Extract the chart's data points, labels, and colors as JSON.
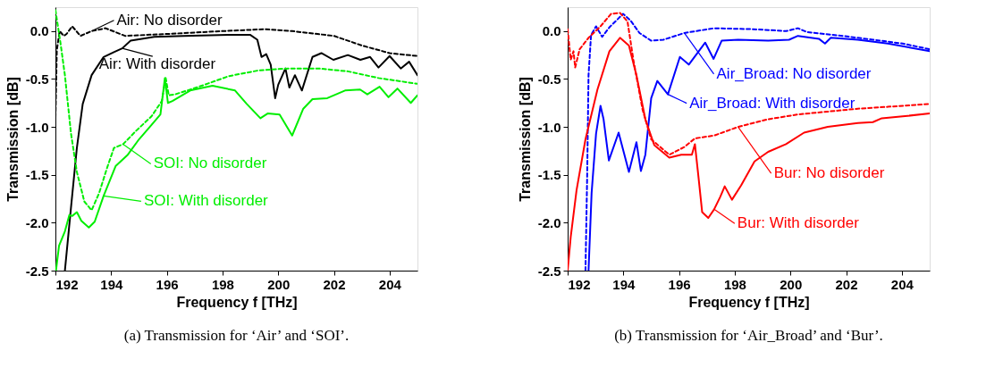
{
  "chart_data": [
    {
      "type": "line",
      "title": "(a)  Transmission for ‘Air’ and ‘SOI’.",
      "xlabel": "Frequency f [THz]",
      "ylabel": "Transmission [dB]",
      "xlim": [
        192,
        205
      ],
      "xticks": [
        192,
        194,
        196,
        198,
        200,
        202,
        204
      ],
      "ylim": [
        -2.5,
        0.25
      ],
      "yticks": [
        {
          "value": -2.5,
          "label": "-2.5"
        },
        {
          "value": -2,
          "label": "-2.0"
        },
        {
          "value": -1.5,
          "label": "-1.5"
        },
        {
          "value": -1,
          "label": "-1.0"
        },
        {
          "value": -0.5,
          "label": "-0.5"
        },
        {
          "value": 0,
          "label": "0.0"
        }
      ],
      "grid": false,
      "series": [
        {
          "color": "#000000",
          "line_style": "dashed",
          "x": [
            192.0,
            192.05,
            192.15,
            192.3,
            192.4,
            192.6,
            192.9,
            193.3,
            193.8,
            194.5,
            196.0,
            198.0,
            199.5,
            200.5,
            202.0,
            203.0,
            204.0,
            205.0
          ],
          "values": [
            -0.9,
            -0.2,
            0.0,
            -0.05,
            -0.03,
            0.05,
            -0.05,
            0.0,
            0.03,
            -0.05,
            -0.03,
            0.0,
            0.02,
            0.0,
            -0.05,
            -0.15,
            -0.23,
            -0.26
          ]
        },
        {
          "color": "#000000",
          "line_style": "solid",
          "x": [
            192.34,
            192.56,
            192.77,
            192.98,
            193.3,
            193.73,
            194.1,
            194.4,
            194.7,
            195.55,
            196.6,
            198.2,
            199.0,
            199.25,
            199.4,
            199.57,
            199.73,
            199.89,
            200.0,
            200.26,
            200.4,
            200.6,
            200.85,
            201.23,
            201.55,
            201.98,
            202.5,
            202.95,
            203.3,
            203.6,
            204.0,
            204.4,
            204.7,
            205.0
          ],
          "values": [
            -2.5,
            -1.84,
            -1.22,
            -0.76,
            -0.46,
            -0.27,
            -0.22,
            -0.18,
            -0.1,
            -0.06,
            -0.05,
            -0.04,
            -0.04,
            -0.09,
            -0.27,
            -0.24,
            -0.35,
            -0.7,
            -0.56,
            -0.39,
            -0.59,
            -0.46,
            -0.62,
            -0.27,
            -0.23,
            -0.3,
            -0.25,
            -0.3,
            -0.27,
            -0.38,
            -0.26,
            -0.39,
            -0.32,
            -0.46
          ]
        },
        {
          "color": "#00ee00",
          "line_style": "dashed",
          "x": [
            192.0,
            192.18,
            192.34,
            192.56,
            192.77,
            193.04,
            193.3,
            193.57,
            193.84,
            194.1,
            194.43,
            194.9,
            195.45,
            195.82,
            195.96,
            196.07,
            196.3,
            197.16,
            198.23,
            199.3,
            200.37,
            201.44,
            202.5,
            203.6,
            205.0
          ],
          "values": [
            0.22,
            -0.12,
            -0.46,
            -1.07,
            -1.47,
            -1.78,
            -1.87,
            -1.69,
            -1.44,
            -1.22,
            -1.18,
            -1.04,
            -0.89,
            -0.73,
            -0.49,
            -0.67,
            -0.66,
            -0.58,
            -0.47,
            -0.41,
            -0.39,
            -0.39,
            -0.42,
            -0.49,
            -0.55
          ]
        },
        {
          "color": "#00ee00",
          "line_style": "solid",
          "x": [
            192.02,
            192.13,
            192.34,
            192.5,
            192.6,
            192.77,
            192.93,
            193.2,
            193.41,
            193.73,
            194.16,
            194.6,
            195.0,
            195.45,
            195.77,
            195.93,
            196.04,
            196.2,
            196.84,
            197.64,
            198.45,
            198.87,
            199.36,
            199.62,
            200.05,
            200.5,
            200.9,
            201.23,
            201.76,
            202.4,
            202.94,
            203.2,
            203.64,
            203.96,
            204.28,
            204.76,
            205.0
          ],
          "values": [
            -2.5,
            -2.24,
            -2.09,
            -1.92,
            -1.93,
            -1.89,
            -1.98,
            -2.05,
            -1.99,
            -1.72,
            -1.41,
            -1.29,
            -1.13,
            -0.98,
            -0.87,
            -0.49,
            -0.75,
            -0.73,
            -0.62,
            -0.57,
            -0.62,
            -0.76,
            -0.91,
            -0.86,
            -0.87,
            -1.09,
            -0.81,
            -0.71,
            -0.7,
            -0.62,
            -0.61,
            -0.66,
            -0.58,
            -0.69,
            -0.6,
            -0.75,
            -0.67
          ]
        }
      ],
      "annotations": [
        {
          "text": "Air: No disorder",
          "x": 193.3,
          "y": 0.0
        },
        {
          "text": "Air: With disorder",
          "x": 194.4,
          "y": -0.18
        },
        {
          "text": "SOI: No disorder",
          "x": 194.43,
          "y": -1.18
        },
        {
          "text": "SOI: With disorder",
          "x": 193.73,
          "y": -1.72
        }
      ]
    },
    {
      "type": "line",
      "title": "(b)  Transmission for ‘Air_Broad’ and ‘Bur’.",
      "xlabel": "Frequency f [THz]",
      "ylabel": "Transmission [dB]",
      "xlim": [
        192,
        205
      ],
      "xticks": [
        192,
        194,
        196,
        198,
        200,
        202,
        204
      ],
      "ylim": [
        -2.5,
        0.25
      ],
      "yticks": [
        {
          "value": -2.5,
          "label": "-2.5"
        },
        {
          "value": -2,
          "label": "-2.0"
        },
        {
          "value": -1.5,
          "label": "-1.5"
        },
        {
          "value": -1,
          "label": "-1.0"
        },
        {
          "value": -0.5,
          "label": "-0.5"
        },
        {
          "value": 0,
          "label": "0.0"
        }
      ],
      "grid": false,
      "series": [
        {
          "color": "#0000ff",
          "line_style": "dashed",
          "x": [
            192.64,
            192.7,
            192.75,
            192.84,
            193.02,
            193.24,
            193.5,
            193.99,
            194.26,
            194.58,
            195.0,
            195.44,
            196.19,
            197.26,
            198.66,
            199.84,
            200.27,
            200.59,
            201.88,
            202.96,
            204.03,
            205.0
          ],
          "values": [
            -2.5,
            -1.53,
            -0.46,
            -0.04,
            0.05,
            -0.06,
            0.04,
            0.18,
            0.11,
            -0.02,
            -0.1,
            -0.09,
            -0.02,
            0.03,
            0.02,
            0.0,
            0.03,
            -0.01,
            -0.05,
            -0.09,
            -0.13,
            -0.19
          ]
        },
        {
          "color": "#0000ff",
          "line_style": "solid",
          "x": [
            192.75,
            192.86,
            193.02,
            193.18,
            193.29,
            193.48,
            193.83,
            194.2,
            194.47,
            194.63,
            194.79,
            195.0,
            195.22,
            195.6,
            196.03,
            196.35,
            196.94,
            197.24,
            197.53,
            198.12,
            199.2,
            199.95,
            200.27,
            201.02,
            201.24,
            201.45,
            202.42,
            203.5,
            205.0
          ],
          "values": [
            -2.5,
            -1.69,
            -1.07,
            -0.78,
            -0.92,
            -1.35,
            -1.06,
            -1.47,
            -1.16,
            -1.46,
            -1.29,
            -0.7,
            -0.52,
            -0.66,
            -0.27,
            -0.35,
            -0.12,
            -0.29,
            -0.1,
            -0.09,
            -0.1,
            -0.09,
            -0.05,
            -0.08,
            -0.13,
            -0.07,
            -0.09,
            -0.13,
            -0.21
          ]
        },
        {
          "color": "#ff0000",
          "line_style": "dashed",
          "x": [
            192.0,
            192.11,
            192.21,
            192.27,
            192.43,
            192.75,
            193.18,
            193.56,
            193.88,
            194.15,
            194.36,
            194.69,
            195.0,
            195.65,
            196.19,
            196.57,
            197.26,
            198.12,
            199.2,
            200.27,
            201.34,
            202.42,
            203.5,
            205.0
          ],
          "values": [
            0.02,
            -0.3,
            -0.21,
            -0.38,
            -0.19,
            -0.07,
            0.05,
            0.18,
            0.19,
            0.1,
            -0.3,
            -0.82,
            -1.13,
            -1.29,
            -1.21,
            -1.12,
            -1.09,
            -1.0,
            -0.92,
            -0.87,
            -0.84,
            -0.81,
            -0.79,
            -0.76
          ]
        },
        {
          "color": "#ff0000",
          "line_style": "solid",
          "x": [
            192.0,
            192.11,
            192.32,
            192.64,
            193.07,
            193.5,
            193.88,
            194.2,
            194.47,
            194.79,
            195.11,
            195.65,
            196.08,
            196.46,
            196.57,
            196.7,
            196.83,
            197.05,
            197.26,
            197.48,
            197.64,
            197.9,
            198.23,
            198.71,
            199.2,
            199.84,
            200.49,
            201.34,
            202.42,
            202.96,
            203.28,
            204.03,
            205.0
          ],
          "values": [
            -2.5,
            -2.15,
            -1.66,
            -1.13,
            -0.61,
            -0.21,
            -0.07,
            -0.15,
            -0.46,
            -0.92,
            -1.19,
            -1.32,
            -1.29,
            -1.29,
            -1.18,
            -1.53,
            -1.89,
            -1.95,
            -1.86,
            -1.73,
            -1.62,
            -1.76,
            -1.61,
            -1.36,
            -1.26,
            -1.18,
            -1.06,
            -1.0,
            -0.96,
            -0.95,
            -0.91,
            -0.89,
            -0.86
          ]
        }
      ],
      "annotations": [
        {
          "text": "Air_Broad: No disorder",
          "x": 196.19,
          "y": -0.02
        },
        {
          "text": "Air_Broad: With disorder",
          "x": 195.6,
          "y": -0.66
        },
        {
          "text": "Bur: No disorder",
          "x": 198.12,
          "y": -1.0
        },
        {
          "text": "Bur: With disorder",
          "x": 197.26,
          "y": -1.86
        }
      ]
    }
  ]
}
